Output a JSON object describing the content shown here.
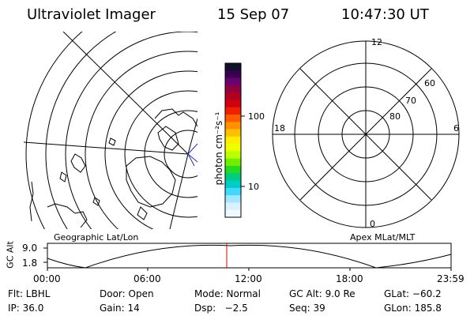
{
  "header": {
    "title": "Ultraviolet Imager",
    "date": "15 Sep 07",
    "time": "10:47:30 UT"
  },
  "colorbar": {
    "unit_label": "photon cm⁻²s⁻¹",
    "tick_labels": [
      "100",
      "10"
    ],
    "colors": [
      "#10102a",
      "#3a0050",
      "#6a0070",
      "#900040",
      "#b00020",
      "#d00010",
      "#ee2000",
      "#ff5a00",
      "#ff9000",
      "#ffc000",
      "#ffee00",
      "#f0ff00",
      "#b8ff00",
      "#70ee00",
      "#20dd20",
      "#00cc80",
      "#00ccc8",
      "#40d8ff",
      "#a0e8ff",
      "#d8f2ff",
      "#f0f8ff"
    ]
  },
  "left_map": {
    "label": "Geographic Lat/Lon"
  },
  "right_map": {
    "label": "Apex MLat/MLT",
    "mlt_labels": {
      "top": "12",
      "left": "18",
      "right": "6",
      "bottom": "0"
    },
    "lat_labels": [
      "60",
      "70",
      "80"
    ]
  },
  "timeline": {
    "ylabel": "GC Alt",
    "y_ticks": [
      "9.0",
      "1.8"
    ],
    "x_ticks": [
      "00:00",
      "06:00",
      "12:00",
      "18:00",
      "23:59"
    ],
    "marker_color": "#e00000",
    "marker_time": "10:47:30"
  },
  "info": {
    "row1": [
      "Flt: LBHL",
      "Door: Open",
      "Mode: Normal",
      "GC Alt: 9.0 Re",
      "GLat: −60.2"
    ],
    "row2": [
      "IP: 36.0",
      "Gain: 14",
      "Dsp:   −2.5",
      "Seq: 39",
      "GLon: 185.8"
    ]
  }
}
